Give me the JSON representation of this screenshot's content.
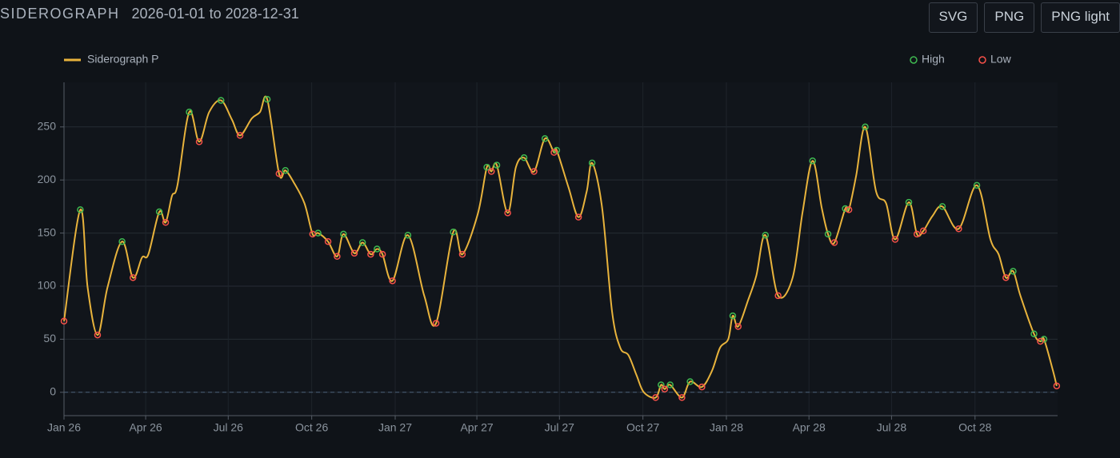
{
  "toolbar": {
    "buttons": [
      "SVG",
      "PNG",
      "PNG light"
    ]
  },
  "chart_data": {
    "type": "line",
    "title": "SIDEROGRAPH",
    "subtitle": "2026-01-01 to 2028-12-31",
    "xlim": [
      "2026-01-01",
      "2028-12-31"
    ],
    "xticks": [
      {
        "value": "2026-01-01",
        "label": "Jan 26"
      },
      {
        "value": "2026-04-01",
        "label": "Apr 26"
      },
      {
        "value": "2026-07-01",
        "label": "Jul 26"
      },
      {
        "value": "2026-10-01",
        "label": "Oct 26"
      },
      {
        "value": "2027-01-01",
        "label": "Jan 27"
      },
      {
        "value": "2027-04-01",
        "label": "Apr 27"
      },
      {
        "value": "2027-07-01",
        "label": "Jul 27"
      },
      {
        "value": "2027-10-01",
        "label": "Oct 27"
      },
      {
        "value": "2028-01-01",
        "label": "Jan 28"
      },
      {
        "value": "2028-04-01",
        "label": "Apr 28"
      },
      {
        "value": "2028-07-01",
        "label": "Jul 28"
      },
      {
        "value": "2028-10-01",
        "label": "Oct 28"
      }
    ],
    "ylim": [
      -22,
      292
    ],
    "yticks": [
      0,
      50,
      100,
      150,
      200,
      250
    ],
    "grid": true,
    "zero_line": true,
    "series": [
      {
        "name": "Siderograph P",
        "color": "#e8b33c",
        "mode": "line",
        "legend": "top-left",
        "x": [
          "2026-01-01",
          "2026-01-19",
          "2026-01-27",
          "2026-02-07",
          "2026-02-18",
          "2026-03-06",
          "2026-03-18",
          "2026-03-28",
          "2026-04-04",
          "2026-04-16",
          "2026-04-23",
          "2026-04-30",
          "2026-05-06",
          "2026-05-19",
          "2026-05-30",
          "2026-06-10",
          "2026-06-23",
          "2026-07-05",
          "2026-07-14",
          "2026-07-27",
          "2026-08-05",
          "2026-08-13",
          "2026-08-26",
          "2026-09-02",
          "2026-09-11",
          "2026-09-23",
          "2026-10-02",
          "2026-10-08",
          "2026-10-19",
          "2026-10-29",
          "2026-11-05",
          "2026-11-17",
          "2026-11-26",
          "2026-12-05",
          "2026-12-12",
          "2026-12-18",
          "2026-12-29",
          "2027-01-15",
          "2027-02-02",
          "2027-02-15",
          "2027-03-06",
          "2027-03-16",
          "2027-04-02",
          "2027-04-12",
          "2027-04-17",
          "2027-04-23",
          "2027-05-05",
          "2027-05-14",
          "2027-05-23",
          "2027-06-03",
          "2027-06-15",
          "2027-06-25",
          "2027-06-28",
          "2027-07-11",
          "2027-07-22",
          "2027-07-31",
          "2027-08-06",
          "2027-08-17",
          "2027-08-28",
          "2027-09-06",
          "2027-09-15",
          "2027-09-24",
          "2027-10-02",
          "2027-10-15",
          "2027-10-21",
          "2027-10-25",
          "2027-10-31",
          "2027-11-13",
          "2027-11-22",
          "2027-12-05",
          "2027-12-16",
          "2027-12-25",
          "2028-01-03",
          "2028-01-08",
          "2028-01-14",
          "2028-01-25",
          "2028-02-03",
          "2028-02-13",
          "2028-02-27",
          "2028-03-14",
          "2028-03-25",
          "2028-04-05",
          "2028-04-15",
          "2028-04-22",
          "2028-04-29",
          "2028-05-11",
          "2028-05-15",
          "2028-05-23",
          "2028-06-02",
          "2028-06-14",
          "2028-06-25",
          "2028-07-05",
          "2028-07-20",
          "2028-07-29",
          "2028-08-05",
          "2028-08-15",
          "2028-08-26",
          "2028-09-13",
          "2028-10-03",
          "2028-10-18",
          "2028-10-27",
          "2028-11-04",
          "2028-11-12",
          "2028-11-20",
          "2028-12-05",
          "2028-12-12",
          "2028-12-16",
          "2028-12-26",
          "2028-12-30"
        ],
        "values": [
          67,
          172,
          99,
          54,
          99,
          142,
          108,
          127,
          130,
          170,
          160,
          185,
          195,
          264,
          236,
          264,
          275,
          257,
          242,
          258,
          264,
          276,
          206,
          209,
          198,
          178,
          149,
          150,
          142,
          128,
          149,
          131,
          141,
          130,
          135,
          130,
          105,
          148,
          91,
          65,
          151,
          130,
          168,
          212,
          208,
          214,
          169,
          212,
          221,
          208,
          239,
          226,
          228,
          193,
          165,
          189,
          216,
          174,
          76,
          42,
          35,
          16,
          0,
          -5,
          7,
          3,
          7,
          -5,
          10,
          5,
          20,
          42,
          50,
          72,
          62,
          87,
          110,
          148,
          91,
          108,
          170,
          218,
          174,
          149,
          141,
          173,
          172,
          204,
          250,
          189,
          178,
          144,
          179,
          149,
          152,
          166,
          175,
          154,
          195,
          144,
          130,
          108,
          114,
          91,
          55,
          48,
          50,
          20,
          6
        ]
      },
      {
        "name": "High",
        "color": "#3fb950",
        "mode": "markers",
        "legend": "top-right",
        "x": [
          "2026-01-19",
          "2026-03-06",
          "2026-04-16",
          "2026-05-19",
          "2026-06-23",
          "2026-08-13",
          "2026-09-02",
          "2026-10-08",
          "2026-11-05",
          "2026-11-26",
          "2026-12-12",
          "2027-01-15",
          "2027-03-06",
          "2027-04-12",
          "2027-04-23",
          "2027-05-23",
          "2027-06-15",
          "2027-06-28",
          "2027-08-06",
          "2027-10-21",
          "2027-10-31",
          "2027-11-22",
          "2028-01-08",
          "2028-02-13",
          "2028-04-05",
          "2028-04-22",
          "2028-05-11",
          "2028-06-02",
          "2028-07-20",
          "2028-08-26",
          "2028-10-03",
          "2028-11-12",
          "2028-12-05",
          "2028-12-16"
        ],
        "values": [
          172,
          142,
          170,
          264,
          275,
          276,
          209,
          150,
          149,
          141,
          135,
          148,
          151,
          212,
          214,
          221,
          239,
          228,
          216,
          7,
          7,
          10,
          72,
          148,
          218,
          149,
          173,
          250,
          179,
          175,
          195,
          114,
          55,
          50
        ]
      },
      {
        "name": "Low",
        "color": "#f85149",
        "mode": "markers",
        "legend": "top-right",
        "x": [
          "2026-01-01",
          "2026-02-07",
          "2026-03-18",
          "2026-04-23",
          "2026-05-30",
          "2026-07-14",
          "2026-08-26",
          "2026-10-02",
          "2026-10-19",
          "2026-10-29",
          "2026-11-17",
          "2026-12-05",
          "2026-12-18",
          "2026-12-29",
          "2027-02-15",
          "2027-03-16",
          "2027-04-17",
          "2027-05-05",
          "2027-06-03",
          "2027-06-25",
          "2027-07-22",
          "2027-10-15",
          "2027-10-25",
          "2027-11-13",
          "2027-12-05",
          "2028-01-14",
          "2028-02-27",
          "2028-04-29",
          "2028-05-15",
          "2028-07-05",
          "2028-07-29",
          "2028-08-05",
          "2028-09-13",
          "2028-11-04",
          "2028-12-12",
          "2028-12-30"
        ],
        "values": [
          67,
          54,
          108,
          160,
          236,
          242,
          206,
          149,
          142,
          128,
          131,
          130,
          130,
          105,
          65,
          130,
          208,
          169,
          208,
          226,
          165,
          -5,
          3,
          -5,
          5,
          62,
          91,
          141,
          172,
          144,
          149,
          152,
          154,
          108,
          48,
          6
        ]
      }
    ]
  }
}
